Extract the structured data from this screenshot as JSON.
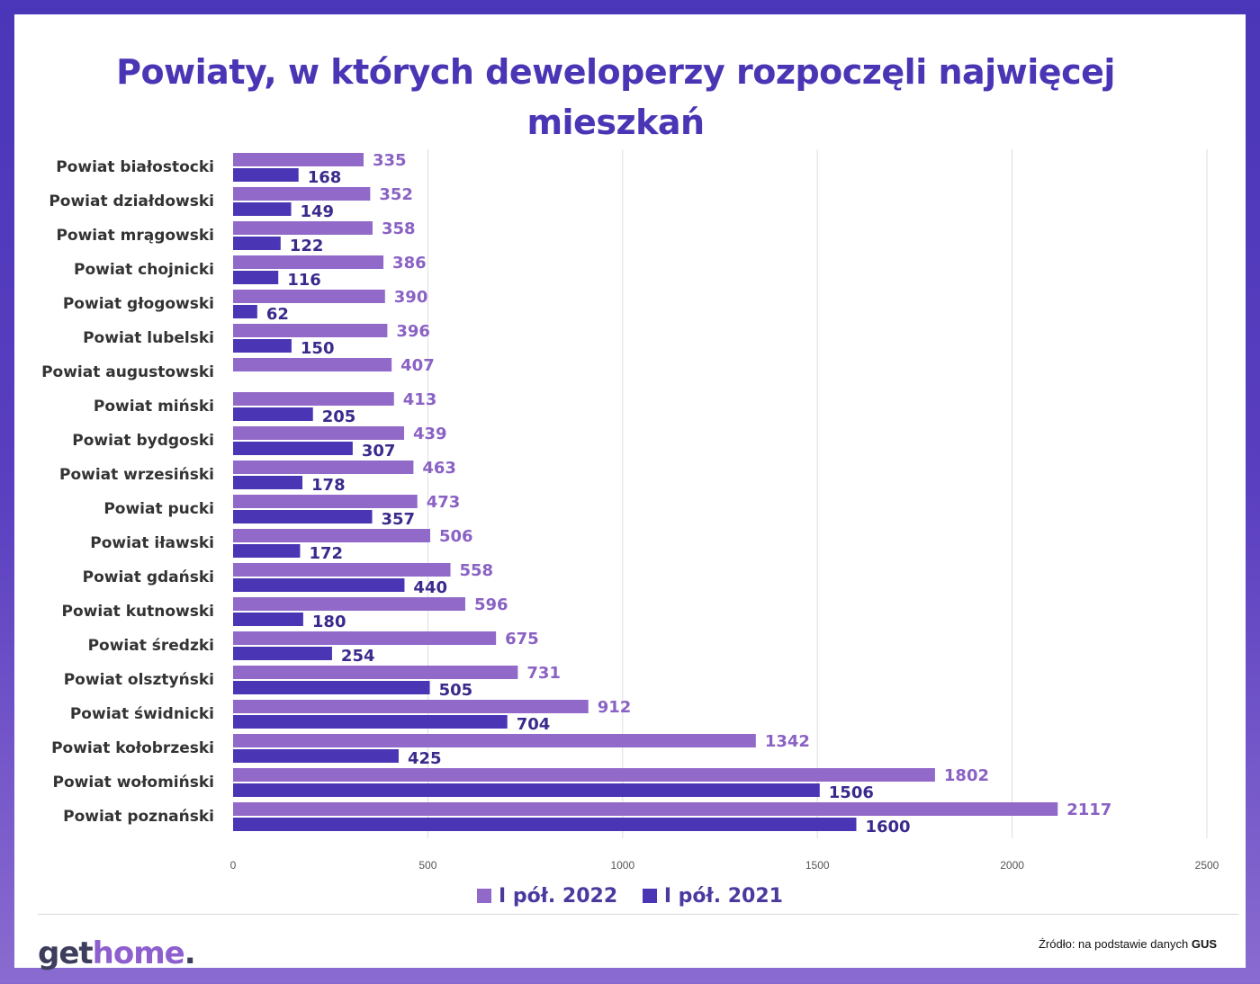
{
  "title": "Powiaty, w których deweloperzy rozpoczęli najwięcej mieszkań",
  "title_line1": "Powiaty, w których deweloperzy rozpoczęli najwięcej",
  "title_line2": "mieszkań",
  "colors": {
    "series_2022": "#9169c9",
    "series_2021": "#4a35b5",
    "label_2022": "#8a62c4",
    "label_2021": "#3a2a8c",
    "grid": "#dddddd"
  },
  "chart_data": {
    "type": "bar",
    "orientation": "horizontal",
    "title": "Powiaty, w których deweloperzy rozpoczęli najwięcej mieszkań",
    "categories": [
      "Powiat białostocki",
      "Powiat działdowski",
      "Powiat mrągowski",
      "Powiat chojnicki",
      "Powiat głogowski",
      "Powiat lubelski",
      "Powiat augustowski",
      "Powiat miński",
      "Powiat bydgoski",
      "Powiat wrzesiński",
      "Powiat pucki",
      "Powiat iławski",
      "Powiat gdański",
      "Powiat kutnowski",
      "Powiat średzki",
      "Powiat olsztyński",
      "Powiat świdnicki",
      "Powiat kołobrzeski",
      "Powiat wołomiński",
      "Powiat poznański"
    ],
    "series": [
      {
        "name": "I pół. 2022",
        "values": [
          335,
          352,
          358,
          386,
          390,
          396,
          407,
          413,
          439,
          463,
          473,
          506,
          558,
          596,
          675,
          731,
          912,
          1342,
          1802,
          2117
        ]
      },
      {
        "name": "I pół. 2021",
        "values": [
          168,
          149,
          122,
          116,
          62,
          150,
          null,
          205,
          307,
          178,
          357,
          172,
          440,
          180,
          254,
          505,
          704,
          425,
          1506,
          1600
        ]
      }
    ],
    "xlim": [
      0,
      2500
    ],
    "xticks": [
      0,
      500,
      1000,
      1500,
      2000,
      2500
    ],
    "xlabel": "",
    "ylabel": "",
    "grid": true,
    "legend": "bottom-center"
  },
  "legend": [
    "I pół. 2022",
    "I pół. 2021"
  ],
  "footer": {
    "logo_get": "get",
    "logo_home": "home",
    "logo_dot": ".",
    "source_prefix": "Źródło: na podstawie danych",
    "source_name": "GUS"
  }
}
